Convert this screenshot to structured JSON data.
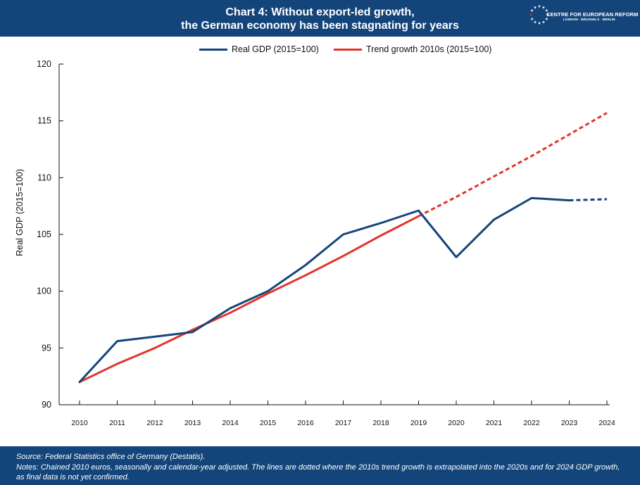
{
  "header": {
    "title_line1": "Chart 4: Without export-led growth,",
    "title_line2": "the German economy has been stagnating for years",
    "logo": {
      "name": "CENTRE FOR EUROPEAN REFORM",
      "cities": [
        "LONDON",
        "BRUSSELS",
        "BERLIN"
      ],
      "icon": "eu-stars-logo-icon"
    }
  },
  "colors": {
    "header_bg": "#14457a",
    "gdp_line": "#14457a",
    "trend_line": "#e2342d",
    "axis": "#111111"
  },
  "chart_data": {
    "type": "line",
    "title": "Chart 4: Without export-led growth, the German economy has been stagnating for years",
    "ylabel": "Real GDP (2015=100)",
    "xlabel": "",
    "ylim": [
      90,
      120
    ],
    "yticks": [
      90,
      95,
      100,
      105,
      110,
      115,
      120
    ],
    "x": [
      "2010",
      "2011",
      "2012",
      "2013",
      "2014",
      "2015",
      "2016",
      "2017",
      "2018",
      "2019",
      "2020",
      "2021",
      "2022",
      "2023",
      "2024"
    ],
    "grid": false,
    "legend_position": "top-center",
    "series": [
      {
        "name": "Real GDP (2015=100)",
        "color": "#14457a",
        "values": [
          92.0,
          95.6,
          96.0,
          96.4,
          98.5,
          100.0,
          102.3,
          105.0,
          106.0,
          107.1,
          103.0,
          106.3,
          108.2,
          108.0,
          108.1
        ],
        "dashed_from": "2023"
      },
      {
        "name": "Trend growth 2010s (2015=100)",
        "color": "#e2342d",
        "values": [
          92.0,
          93.6,
          95.0,
          96.6,
          98.1,
          99.8,
          101.4,
          103.1,
          104.9,
          106.6,
          108.3,
          110.1,
          111.9,
          113.8,
          115.7
        ],
        "dashed_from": "2019"
      }
    ]
  },
  "footer": {
    "source": "Source: Federal Statistics office of Germany (Destatis).",
    "notes_line1": "Notes: Chained 2010 euros, seasonally and calendar-year adjusted. The lines are dotted where the 2010s trend growth is extrapolated into the 2020s and for 2024 GDP growth,",
    "notes_line2": "as final data is not yet confirmed."
  }
}
